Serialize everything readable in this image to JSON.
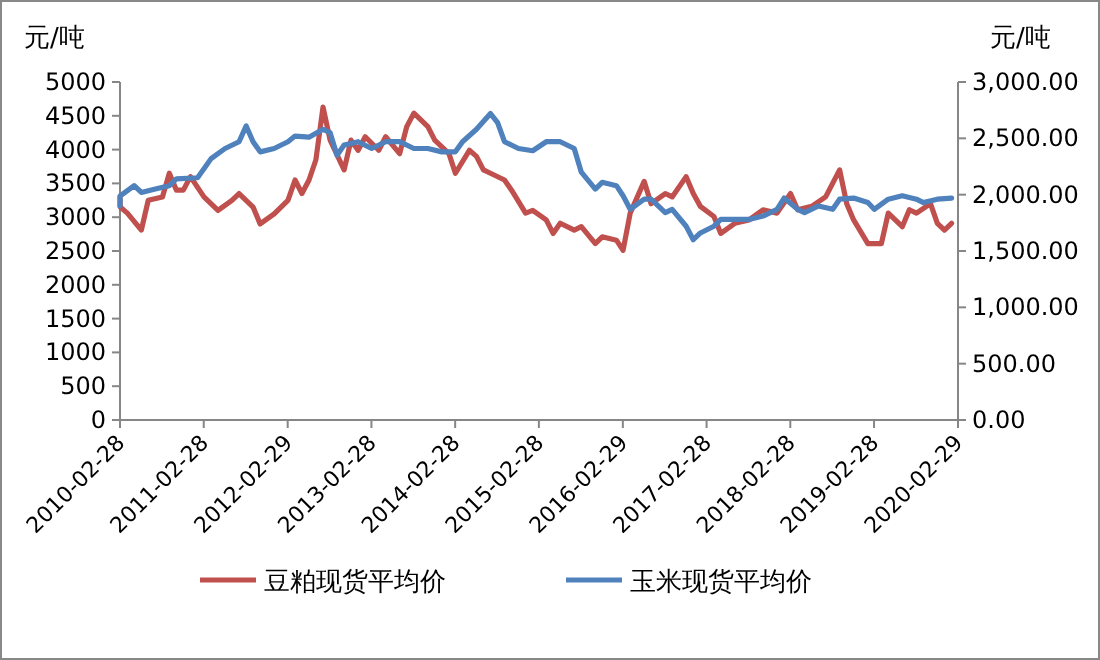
{
  "chart_data": {
    "type": "line",
    "ylabel": "元/吨",
    "y2label": "元/吨",
    "legend": "bottom",
    "xlim": [
      "2010-02-28",
      "2020-02-29"
    ],
    "xticks": [
      "2010-02-28",
      "2011-02-28",
      "2012-02-29",
      "2013-02-28",
      "2014-02-28",
      "2015-02-28",
      "2016-02-29",
      "2017-02-28",
      "2018-02-28",
      "2019-02-28",
      "2020-02-29"
    ],
    "ylim": [
      0,
      5000
    ],
    "yticks": [
      0,
      500,
      1000,
      1500,
      2000,
      2500,
      3000,
      3500,
      4000,
      4500,
      5000
    ],
    "y2lim": [
      0,
      3000
    ],
    "y2ticks": [
      {
        "value": 0,
        "label": "0.00"
      },
      {
        "value": 500,
        "label": "500.00"
      },
      {
        "value": 1000,
        "label": "1,000.00"
      },
      {
        "value": 1500,
        "label": "1,500.00"
      },
      {
        "value": 2000,
        "label": "2,000.00"
      },
      {
        "value": 2500,
        "label": "2,500.00"
      },
      {
        "value": 3000,
        "label": "3,000.00"
      }
    ],
    "series": [
      {
        "name": "豆粕现货平均价",
        "color": "#c0504d",
        "x": [
          "2010-02-28",
          "2010-03",
          "2010-04",
          "2010-06",
          "2010-07",
          "2010-09",
          "2010-10",
          "2010-11",
          "2010-12",
          "2011-01",
          "2011-03",
          "2011-05",
          "2011-07",
          "2011-08",
          "2011-10",
          "2011-11",
          "2012-01",
          "2012-03",
          "2012-04",
          "2012-05",
          "2012-06",
          "2012-07",
          "2012-08",
          "2012-09",
          "2012-11",
          "2012-12",
          "2013-01",
          "2013-02",
          "2013-04",
          "2013-05",
          "2013-07",
          "2013-08",
          "2013-09",
          "2013-11",
          "2013-12",
          "2014-02",
          "2014-03",
          "2014-05",
          "2014-06",
          "2014-07",
          "2014-08",
          "2014-10",
          "2014-11",
          "2015-01",
          "2015-02",
          "2015-04",
          "2015-05",
          "2015-06",
          "2015-08",
          "2015-09",
          "2015-11",
          "2015-12",
          "2016-02",
          "2016-03",
          "2016-04",
          "2016-06",
          "2016-07",
          "2016-09",
          "2016-10",
          "2016-12",
          "2017-01",
          "2017-02",
          "2017-04",
          "2017-05",
          "2017-07",
          "2017-09",
          "2017-11",
          "2018-01",
          "2018-03",
          "2018-04",
          "2018-06",
          "2018-08",
          "2018-10",
          "2018-11",
          "2018-12",
          "2019-02",
          "2019-04",
          "2019-05",
          "2019-07",
          "2019-08",
          "2019-09",
          "2019-11",
          "2019-12",
          "2020-01",
          "2020-02"
        ],
        "values": [
          3300,
          3150,
          3060,
          2810,
          3250,
          3300,
          3650,
          3400,
          3400,
          3600,
          3300,
          3100,
          3250,
          3350,
          3150,
          2900,
          3050,
          3250,
          3550,
          3350,
          3550,
          3850,
          4630,
          4140,
          3700,
          4140,
          3990,
          4190,
          3990,
          4190,
          3940,
          4340,
          4540,
          4340,
          4140,
          3940,
          3650,
          3990,
          3900,
          3700,
          3650,
          3550,
          3400,
          3060,
          3100,
          2960,
          2760,
          2910,
          2810,
          2860,
          2610,
          2710,
          2660,
          2510,
          3060,
          3530,
          3200,
          3350,
          3300,
          3600,
          3350,
          3160,
          3010,
          2760,
          2910,
          2960,
          3110,
          3060,
          3350,
          3110,
          3160,
          3300,
          3700,
          3200,
          2960,
          2610,
          2610,
          3060,
          2860,
          3110,
          3060,
          3200,
          2910,
          2810,
          2910
        ]
      },
      {
        "name": "玉米现货平均价",
        "color": "#4f81bd",
        "axis": "y2",
        "x": [
          "2010-02-28",
          "2010-03",
          "2010-05",
          "2010-06",
          "2010-08",
          "2010-10",
          "2010-11",
          "2011-02",
          "2011-03",
          "2011-04",
          "2011-06",
          "2011-08",
          "2011-09",
          "2011-10",
          "2011-11",
          "2012-01",
          "2012-03",
          "2012-04",
          "2012-06",
          "2012-08",
          "2012-09",
          "2012-10",
          "2012-11",
          "2013-01",
          "2013-03",
          "2013-05",
          "2013-07",
          "2013-09",
          "2013-11",
          "2014-01",
          "2014-03",
          "2014-04",
          "2014-06",
          "2014-08",
          "2014-09",
          "2014-10",
          "2014-12",
          "2015-02",
          "2015-04",
          "2015-06",
          "2015-08",
          "2015-09",
          "2015-11",
          "2015-12",
          "2016-02",
          "2016-03",
          "2016-04",
          "2016-06",
          "2016-07",
          "2016-09",
          "2016-10",
          "2016-12",
          "2017-01",
          "2017-02",
          "2017-04",
          "2017-05",
          "2017-07",
          "2017-09",
          "2017-11",
          "2018-01",
          "2018-02",
          "2018-04",
          "2018-05",
          "2018-07",
          "2018-09",
          "2018-10",
          "2018-12",
          "2019-02",
          "2019-03",
          "2019-05",
          "2019-07",
          "2019-09",
          "2019-10",
          "2019-12",
          "2020-02"
        ],
        "values": [
          1900,
          1990,
          2080,
          2020,
          2050,
          2080,
          2140,
          2150,
          2230,
          2320,
          2410,
          2470,
          2610,
          2470,
          2380,
          2410,
          2470,
          2520,
          2510,
          2580,
          2550,
          2350,
          2440,
          2470,
          2410,
          2470,
          2470,
          2410,
          2410,
          2380,
          2380,
          2470,
          2580,
          2720,
          2640,
          2470,
          2410,
          2390,
          2470,
          2470,
          2410,
          2200,
          2050,
          2110,
          2080,
          1990,
          1870,
          1960,
          1960,
          1840,
          1870,
          1720,
          1600,
          1660,
          1720,
          1780,
          1780,
          1780,
          1810,
          1870,
          1970,
          1870,
          1840,
          1900,
          1870,
          1960,
          1970,
          1930,
          1870,
          1960,
          1990,
          1960,
          1930,
          1960,
          1970
        ]
      }
    ]
  }
}
